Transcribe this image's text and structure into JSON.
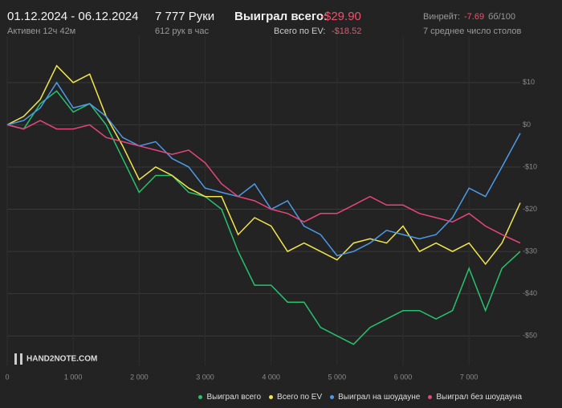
{
  "header": {
    "period": "01.12.2024 - 06.12.2024",
    "active": "Активен 12ч 42м",
    "hands": "7 777 Руки",
    "rate": "612 рук в час",
    "won_label": "Выиграл всего:",
    "won_value": "-$29.90",
    "ev_label": "Всего по EV:",
    "ev_value": "-$18.52",
    "winrate_label": "Винрейт:",
    "winrate_value": "-7.69",
    "winrate_unit": "бб/100",
    "tables": "7 среднее число столов",
    "logo": "HAND2NOTE.COM"
  },
  "chart_data": {
    "type": "line",
    "x": [
      0,
      250,
      500,
      750,
      1000,
      1250,
      1500,
      1750,
      2000,
      2250,
      2500,
      2750,
      3000,
      3250,
      3500,
      3750,
      4000,
      4250,
      4500,
      4750,
      5000,
      5250,
      5500,
      5750,
      6000,
      6250,
      6500,
      6750,
      7000,
      7250,
      7500,
      7777
    ],
    "series": [
      {
        "name": "Выиграл всего",
        "color": "#27c26c",
        "values": [
          0,
          -1,
          5,
          8,
          3,
          5,
          0,
          -8,
          -16,
          -12,
          -12,
          -16,
          -17,
          -20,
          -30,
          -38,
          -38,
          -42,
          -42,
          -48,
          -50,
          -52,
          -48,
          -46,
          -44,
          -44,
          -46,
          -44,
          -34,
          -44,
          -34,
          -30
        ]
      },
      {
        "name": "Всего по EV",
        "color": "#f2e64a",
        "values": [
          0,
          2,
          6,
          14,
          10,
          12,
          2,
          -5,
          -13,
          -10,
          -12,
          -15,
          -17,
          -17,
          -26,
          -22,
          -24,
          -30,
          -28,
          -30,
          -32,
          -28,
          -27,
          -28,
          -24,
          -30,
          -28,
          -30,
          -28,
          -33,
          -28,
          -18.5
        ]
      },
      {
        "name": "Выиграл на шоудауне",
        "color": "#4b9be8",
        "values": [
          0,
          1,
          4,
          10,
          4,
          5,
          2,
          -3,
          -5,
          -4,
          -8,
          -10,
          -15,
          -16,
          -17,
          -14,
          -20,
          -18,
          -24,
          -26,
          -31,
          -30,
          -28,
          -25,
          -26,
          -27,
          -26,
          -22,
          -15,
          -17,
          -10,
          -2
        ]
      },
      {
        "name": "Выиграл без шоудауна",
        "color": "#e8457a",
        "values": [
          0,
          -1,
          1,
          -1,
          -1,
          0,
          -3,
          -4,
          -5,
          -6,
          -7,
          -6,
          -9,
          -14,
          -17,
          -18,
          -20,
          -21,
          -23,
          -21,
          -21,
          -19,
          -17,
          -19,
          -19,
          -21,
          -22,
          -23,
          -21,
          -24,
          -26,
          -28
        ]
      }
    ],
    "xlim": [
      0,
      7777
    ],
    "xticks": [
      0,
      {
        "value": 1000,
        "label": "1 000"
      },
      {
        "value": 2000,
        "label": "2 000"
      },
      {
        "value": 3000,
        "label": "3 000"
      },
      {
        "value": 4000,
        "label": "4 000"
      },
      {
        "value": 5000,
        "label": "5 000"
      },
      {
        "value": 6000,
        "label": "6 000"
      },
      {
        "value": 7000,
        "label": "7 000"
      }
    ],
    "ylim": [
      -57,
      21
    ],
    "yticks": [
      {
        "value": 10,
        "label": "$10"
      },
      {
        "value": 0,
        "label": "$0"
      },
      {
        "value": -10,
        "label": "-$10"
      },
      {
        "value": -20,
        "label": "-$20"
      },
      {
        "value": -30,
        "label": "-$30"
      },
      {
        "value": -40,
        "label": "-$40"
      },
      {
        "value": -50,
        "label": "-$50"
      }
    ],
    "grid": true
  }
}
